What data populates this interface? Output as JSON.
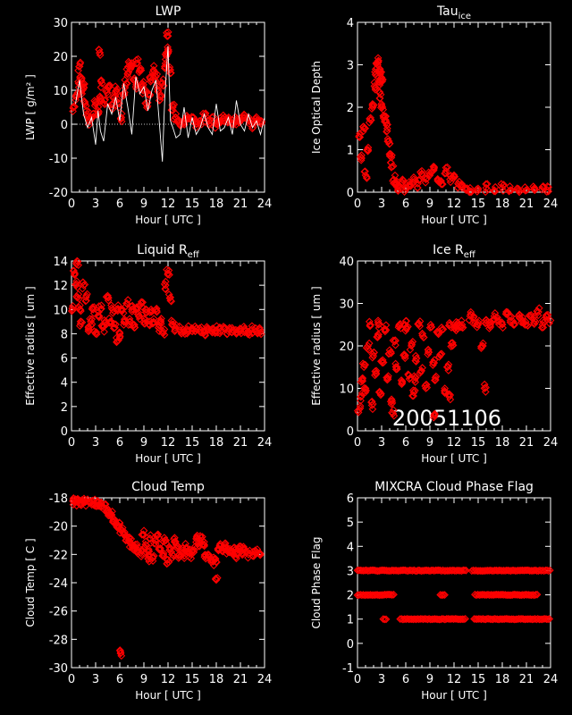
{
  "figure": {
    "date_label": "20051106"
  },
  "chart_data": [
    {
      "id": "lwp",
      "type": "scatter",
      "title": "LWP",
      "xlabel": "Hour [ UTC ]",
      "ylabel": "LWP [ g/m² ]",
      "xlim": [
        0,
        24
      ],
      "ylim": [
        -20,
        30
      ],
      "xticks": [
        0,
        3,
        6,
        9,
        12,
        15,
        18,
        21,
        24
      ],
      "yticks": [
        -20,
        -10,
        0,
        10,
        20,
        30
      ],
      "series": [
        {
          "values_desc": "retrieved",
          "color": "#ff0000",
          "marker": "diamond",
          "x": [
            0.3,
            0.6,
            0.9,
            1.0,
            1.1,
            1.3,
            1.5,
            1.7,
            2.0,
            2.3,
            2.6,
            3.0,
            3.3,
            3.5,
            3.8,
            4.1,
            4.4,
            4.7,
            5.0,
            5.3,
            5.6,
            5.9,
            6.2,
            6.5,
            6.8,
            7.0,
            7.2,
            7.5,
            7.8,
            8.0,
            8.2,
            8.5,
            8.8,
            9.0,
            9.3,
            9.6,
            9.9,
            10.2,
            10.5,
            10.8,
            11.0,
            11.3,
            11.6,
            11.8,
            12.0,
            12.3,
            12.6,
            12.9,
            13.2,
            13.5,
            14.0,
            14.5,
            15.0,
            15.5,
            16.0,
            16.5,
            17.0,
            17.5,
            18.0,
            18.5,
            19.0,
            19.5,
            20.0,
            20.5,
            21.0,
            21.5,
            22.0,
            22.5,
            23.0,
            23.5,
            3.5,
            12.0
          ],
          "y": [
            5,
            8,
            12,
            17,
            14,
            9,
            11,
            6,
            3,
            1,
            2,
            6,
            4,
            8,
            12,
            7,
            10,
            11,
            5,
            8,
            10,
            6,
            2,
            9,
            12,
            15,
            18,
            17,
            13,
            11,
            18,
            16,
            12,
            10,
            6,
            9,
            13,
            16,
            14,
            10,
            8,
            12,
            17,
            20,
            22,
            16,
            5,
            2,
            1,
            0,
            1,
            2,
            1,
            0,
            1,
            2,
            1,
            1,
            0,
            1,
            2,
            1,
            0,
            1,
            1,
            2,
            1,
            0,
            1,
            1,
            21,
            26
          ]
        },
        {
          "values_desc": "observed",
          "color": "#ffffff",
          "x": [
            0.5,
            1.0,
            1.5,
            2.0,
            2.5,
            3.0,
            3.3,
            3.6,
            4.0,
            4.5,
            5.0,
            5.5,
            6.0,
            6.5,
            7.0,
            7.5,
            8.0,
            8.5,
            9.0,
            9.5,
            10.0,
            10.5,
            11.0,
            11.3,
            11.6,
            12.0,
            12.3,
            12.6,
            13.0,
            13.5,
            14.0,
            14.5,
            15.0,
            15.5,
            16.0,
            16.5,
            17.0,
            17.5,
            18.0,
            18.5,
            19.0,
            19.5,
            20.0,
            20.5,
            21.0,
            21.5,
            22.0,
            22.5,
            23.0,
            23.5,
            24.0
          ],
          "y": [
            6,
            13,
            3,
            -1,
            2,
            -6,
            4,
            -2,
            -5,
            6,
            3,
            8,
            1,
            12,
            5,
            -3,
            14,
            9,
            11,
            4,
            10,
            13,
            -2,
            -11,
            8,
            23,
            1,
            -1,
            -4,
            -3,
            5,
            -4,
            2,
            -3,
            -1,
            3,
            -1,
            -3,
            6,
            -2,
            -1,
            2,
            -3,
            7,
            0,
            -2,
            3,
            -1,
            1,
            -3,
            2
          ]
        }
      ]
    },
    {
      "id": "tau",
      "type": "scatter",
      "title": "Tau",
      "title_sub": "ice",
      "xlabel": "Hour [ UTC ]",
      "ylabel": "Ice Optical Depth",
      "xlim": [
        0,
        24
      ],
      "ylim": [
        0,
        4
      ],
      "xticks": [
        0,
        3,
        6,
        9,
        12,
        15,
        18,
        21,
        24
      ],
      "yticks": [
        0,
        1,
        2,
        3,
        4
      ],
      "series": [
        {
          "color": "#ff0000",
          "marker": "diamond",
          "x": [
            0.2,
            0.5,
            0.8,
            1.0,
            1.3,
            1.6,
            1.9,
            2.1,
            2.3,
            2.5,
            2.7,
            2.9,
            3.1,
            3.3,
            3.5,
            3.7,
            3.9,
            4.1,
            4.3,
            4.5,
            4.8,
            5.2,
            5.6,
            6.0,
            6.5,
            7.0,
            7.5,
            8.0,
            8.5,
            9.0,
            9.5,
            10.0,
            10.5,
            11.0,
            11.5,
            12.0,
            12.5,
            13.0,
            13.5,
            14.0,
            15.0,
            16.0,
            17.0,
            18.0,
            19.0,
            20.0,
            21.0,
            22.0,
            23.0,
            23.6,
            2.6,
            2.8,
            3.0
          ],
          "y": [
            1.3,
            0.8,
            1.5,
            0.4,
            1.0,
            1.7,
            2.0,
            2.5,
            2.8,
            3.0,
            2.6,
            2.3,
            2.0,
            1.8,
            1.7,
            1.5,
            1.2,
            0.9,
            0.6,
            0.3,
            0.2,
            0.1,
            0.3,
            0.1,
            0.2,
            0.3,
            0.2,
            0.5,
            0.3,
            0.4,
            0.6,
            0.3,
            0.2,
            0.5,
            0.3,
            0.4,
            0.2,
            0.1,
            0.05,
            0.1,
            0.05,
            0.1,
            0.05,
            0.1,
            0.05,
            0.08,
            0.05,
            0.1,
            0.12,
            0.05,
            3.1,
            2.9,
            2.7
          ]
        }
      ]
    },
    {
      "id": "reff_liq",
      "type": "scatter",
      "title": "Liquid R",
      "title_sub": "eff",
      "xlabel": "Hour [ UTC ]",
      "ylabel": "Effective radius [ um ]",
      "xlim": [
        0,
        24
      ],
      "ylim": [
        0,
        14
      ],
      "xticks": [
        0,
        3,
        6,
        9,
        12,
        15,
        18,
        21,
        24
      ],
      "yticks": [
        0,
        2,
        4,
        6,
        8,
        10,
        12,
        14
      ],
      "series": [
        {
          "color": "#ff0000",
          "marker": "diamond",
          "x": [
            0.2,
            0.4,
            0.6,
            0.8,
            1.0,
            1.2,
            1.5,
            1.8,
            2.1,
            2.4,
            2.7,
            3.0,
            3.3,
            3.6,
            3.9,
            4.2,
            4.5,
            4.8,
            5.1,
            5.4,
            5.7,
            6.0,
            6.3,
            6.6,
            6.9,
            7.2,
            7.5,
            7.8,
            8.1,
            8.4,
            8.7,
            9.0,
            9.3,
            9.6,
            9.9,
            10.2,
            10.5,
            10.8,
            11.1,
            11.4,
            11.7,
            12.0,
            12.3,
            12.6,
            12.9,
            13.5,
            14.0,
            14.5,
            15.0,
            15.5,
            16.0,
            16.5,
            17.0,
            17.5,
            18.0,
            18.5,
            19.0,
            19.5,
            20.0,
            20.5,
            21.0,
            21.5,
            22.0,
            22.5,
            23.0,
            23.5,
            0.7,
            5.7
          ],
          "y": [
            10,
            13,
            12,
            11,
            10,
            9,
            12,
            11,
            8.5,
            9,
            10,
            8,
            9.5,
            10,
            8.5,
            9,
            11,
            9,
            10,
            8.5,
            10,
            8,
            10,
            9,
            10.5,
            9,
            10,
            8.5,
            10,
            9.5,
            10.5,
            9,
            10,
            8.8,
            10,
            9,
            10,
            8.5,
            9,
            8.2,
            12,
            13,
            11,
            9,
            8.5,
            8.3,
            8.2,
            8.3,
            8.2,
            8.4,
            8.3,
            8.2,
            8.3,
            8.1,
            8.3,
            8.2,
            8.4,
            8.2,
            8.3,
            8.1,
            8.2,
            8.3,
            8.1,
            8.4,
            8.2,
            8.3,
            14,
            7.4
          ]
        }
      ]
    },
    {
      "id": "reff_ice",
      "type": "scatter",
      "title": "Ice R",
      "title_sub": "eff",
      "xlabel": "Hour [ UTC ]",
      "ylabel": "Effective radius [ um ]",
      "xlim": [
        0,
        24
      ],
      "ylim": [
        0,
        40
      ],
      "xticks": [
        0,
        3,
        6,
        9,
        12,
        15,
        18,
        21,
        24
      ],
      "yticks": [
        0,
        10,
        20,
        30,
        40
      ],
      "series": [
        {
          "color": "#ff0000",
          "marker": "diamond",
          "x": [
            0.2,
            0.4,
            0.6,
            0.8,
            1.0,
            1.3,
            1.6,
            1.9,
            2.2,
            2.5,
            2.8,
            3.1,
            3.4,
            3.7,
            4.0,
            4.3,
            4.6,
            4.9,
            5.2,
            5.5,
            5.8,
            6.1,
            6.4,
            6.7,
            7.0,
            7.3,
            7.6,
            7.9,
            8.2,
            8.5,
            8.8,
            9.1,
            9.4,
            9.7,
            10.0,
            10.3,
            10.6,
            10.9,
            11.2,
            11.5,
            11.8,
            12.1,
            12.4,
            12.7,
            13.0,
            14.0,
            14.5,
            15.0,
            15.5,
            16.0,
            16.5,
            17.0,
            17.5,
            18.0,
            18.5,
            19.0,
            19.5,
            20.0,
            20.5,
            21.0,
            21.5,
            22.0,
            22.5,
            23.0,
            23.5,
            24.0,
            1.8,
            2.6,
            4.4,
            5.9,
            7.1,
            9.6,
            11.4,
            15.8
          ],
          "y": [
            5,
            8,
            12,
            15,
            10,
            20,
            25,
            18,
            14,
            22,
            9,
            16,
            24,
            12,
            19,
            7,
            21,
            15,
            25,
            11,
            18,
            24,
            13,
            20,
            9,
            17,
            25,
            14,
            22,
            10,
            19,
            25,
            16,
            12,
            23,
            18,
            24,
            9,
            15,
            25,
            20,
            24,
            25,
            25,
            25,
            27,
            26,
            25,
            20,
            26,
            25,
            27,
            26,
            25,
            28,
            26,
            25,
            27,
            26,
            25,
            27,
            26,
            28,
            25,
            27,
            26,
            6,
            25,
            4,
            25,
            12,
            4,
            8,
            10
          ]
        }
      ]
    },
    {
      "id": "cloud_temp",
      "type": "scatter",
      "title": "Cloud Temp",
      "xlabel": "Hour [ UTC ]",
      "ylabel": "Cloud Temp [ C ]",
      "xlim": [
        0,
        24
      ],
      "ylim": [
        -30,
        -18
      ],
      "xticks": [
        0,
        3,
        6,
        9,
        12,
        15,
        18,
        21,
        24
      ],
      "yticks": [
        -30,
        -28,
        -26,
        -24,
        -22,
        -20,
        -18
      ],
      "series": [
        {
          "color": "#ff0000",
          "marker": "diamond",
          "x": [
            0.2,
            0.5,
            0.8,
            1.1,
            1.4,
            1.7,
            2.0,
            2.3,
            2.6,
            2.9,
            3.2,
            3.5,
            3.8,
            4.1,
            4.4,
            4.7,
            5.0,
            5.3,
            5.6,
            5.9,
            6.2,
            6.5,
            6.8,
            7.1,
            7.4,
            7.7,
            8.0,
            8.3,
            8.6,
            8.9,
            9.2,
            9.5,
            9.8,
            10.1,
            10.4,
            10.7,
            11.0,
            11.3,
            11.6,
            11.9,
            12.2,
            12.5,
            12.8,
            13.1,
            13.4,
            13.7,
            14.0,
            14.3,
            14.6,
            14.9,
            15.2,
            15.5,
            15.8,
            16.1,
            16.4,
            16.7,
            17.0,
            17.3,
            17.6,
            17.9,
            18.2,
            18.5,
            18.8,
            19.1,
            19.4,
            19.7,
            20.0,
            20.3,
            20.6,
            20.9,
            21.2,
            21.5,
            22.0,
            22.5,
            23.0,
            23.5,
            6.1,
            18.0,
            9.5
          ],
          "y": [
            -18.2,
            -18.3,
            -18.1,
            -18.3,
            -18.2,
            -18.3,
            -18.1,
            -18.3,
            -18.2,
            -18.4,
            -18.3,
            -18.4,
            -18.6,
            -18.7,
            -18.9,
            -19.0,
            -19.2,
            -19.5,
            -19.8,
            -20.0,
            -20.3,
            -20.5,
            -20.8,
            -21.0,
            -21.2,
            -21.4,
            -21.5,
            -21.7,
            -21.9,
            -20.6,
            -21.3,
            -21.8,
            -20.9,
            -22.2,
            -21.0,
            -20.6,
            -21.6,
            -22.1,
            -21.0,
            -22.4,
            -21.7,
            -22.0,
            -21.1,
            -21.4,
            -22.0,
            -21.8,
            -22.1,
            -21.5,
            -21.9,
            -22.0,
            -21.7,
            -20.9,
            -21.2,
            -20.8,
            -21.3,
            -22.3,
            -22.0,
            -22.4,
            -22.5,
            -22.3,
            -21.6,
            -21.4,
            -21.8,
            -21.5,
            -21.8,
            -21.6,
            -21.9,
            -21.7,
            -22.0,
            -21.6,
            -21.9,
            -21.7,
            -22.0,
            -22.1,
            -21.9,
            -22.0,
            -29.0,
            -23.8,
            -22.3
          ]
        }
      ]
    },
    {
      "id": "phase",
      "type": "scatter",
      "title": "MIXCRA Cloud Phase Flag",
      "xlabel": "Hour [ UTC ]",
      "ylabel": "Cloud Phase Flag",
      "xlim": [
        0,
        24
      ],
      "ylim": [
        -1,
        6
      ],
      "xticks": [
        0,
        3,
        6,
        9,
        12,
        15,
        18,
        21,
        24
      ],
      "yticks": [
        -1,
        0,
        1,
        2,
        3,
        4,
        5,
        6
      ],
      "series": [
        {
          "color": "#ff0000",
          "marker": "diamond",
          "segments": [
            {
              "y": 3,
              "ranges": [
                [
                  0,
                  13.5
                ],
                [
                  14.2,
                  24
                ]
              ]
            },
            {
              "y": 2,
              "ranges": [
                [
                  0,
                  4.6
                ],
                [
                  10.3,
                  11.0
                ],
                [
                  14.6,
                  22.4
                ]
              ]
            },
            {
              "y": 1,
              "ranges": [
                [
                  3.2,
                  3.6
                ],
                [
                  5.3,
                  13.4
                ],
                [
                  14.5,
                  24
                ]
              ]
            }
          ]
        }
      ]
    }
  ]
}
